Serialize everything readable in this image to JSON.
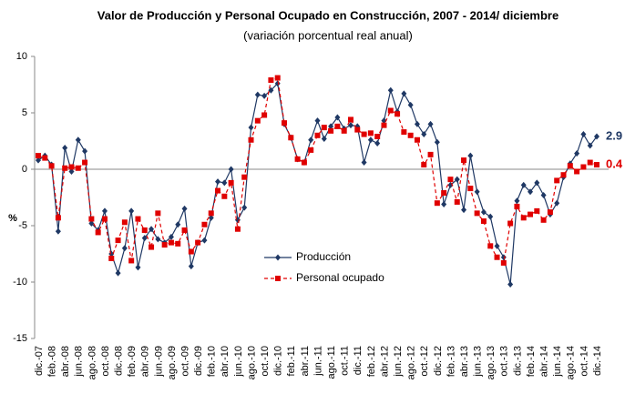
{
  "chart_data": {
    "type": "line",
    "title": "Valor de Producción y Personal Ocupado en Construcción, 2007 - 2014/ diciembre",
    "subtitle": "(variación porcentual real anual)",
    "y_label": "%",
    "categories": [
      "dic.-07",
      null,
      "feb.-08",
      null,
      "abr.-08",
      null,
      "jun.-08",
      null,
      "ago.-08",
      null,
      "oct.-08",
      null,
      "dic.-08",
      null,
      "feb.-09",
      null,
      "abr.-09",
      null,
      "jun.-09",
      null,
      "ago.-09",
      null,
      "oct.-09",
      null,
      "dic.-09",
      null,
      "feb.-10",
      null,
      "abr.-10",
      null,
      "jun.-10",
      null,
      "ago.-10",
      null,
      "oct.-10",
      null,
      "dic.-10",
      null,
      "feb.-11",
      null,
      "abr.-11",
      null,
      "jun.-11",
      null,
      "ago.-11",
      null,
      "oct.-11",
      null,
      "dic.-11",
      null,
      "feb.-12",
      null,
      "abr.-12",
      null,
      "jun.-12",
      null,
      "ago.-12",
      null,
      "oct.-12",
      null,
      "dic.-12",
      null,
      "feb.-13",
      null,
      "abr.-13",
      null,
      "jun.-13",
      null,
      "ago.-13",
      null,
      "oct.-13",
      null,
      "dic.-13",
      null,
      "feb.-14",
      null,
      "abr.-14",
      null,
      "jun.-14",
      null,
      "ago.-14",
      null,
      "oct.-14",
      null,
      "dic.-14"
    ],
    "series": [
      {
        "name": "Producción",
        "color": "#1f3864",
        "marker": "diamond",
        "dashed": false,
        "values": [
          0.8,
          1.2,
          0.4,
          -5.5,
          1.9,
          -0.2,
          2.6,
          1.6,
          -4.8,
          -5.4,
          -3.7,
          -7.5,
          -9.2,
          -7.0,
          -3.7,
          -8.7,
          -6.1,
          -5.3,
          -6.2,
          -6.5,
          -6.0,
          -4.9,
          -3.5,
          -8.6,
          -6.5,
          -6.3,
          -4.3,
          -1.1,
          -1.2,
          0.0,
          -4.5,
          -3.4,
          3.7,
          6.6,
          6.5,
          7.0,
          7.6,
          4.0,
          2.8,
          0.9,
          0.6,
          2.6,
          4.3,
          2.7,
          3.8,
          4.6,
          3.6,
          3.9,
          3.8,
          0.6,
          2.6,
          2.3,
          4.3,
          7.0,
          5.1,
          6.7,
          5.7,
          4.0,
          3.1,
          4.0,
          2.4,
          -3.1,
          -1.4,
          -0.9,
          -3.6,
          1.2,
          -2.0,
          -3.8,
          -4.2,
          -6.8,
          -7.8,
          -10.2,
          -2.8,
          -1.4,
          -2.0,
          -1.2,
          -2.3,
          -4.0,
          -3.0,
          -0.7,
          0.5,
          1.4,
          3.1,
          2.1,
          2.9
        ]
      },
      {
        "name": "Personal ocupado",
        "color": "#e00000",
        "marker": "square",
        "dashed": true,
        "values": [
          1.2,
          1.0,
          0.3,
          -4.3,
          0.1,
          0.2,
          0.1,
          0.6,
          -4.4,
          -5.6,
          -4.4,
          -7.9,
          -6.3,
          -4.7,
          -8.1,
          -4.4,
          -5.4,
          -6.9,
          -3.9,
          -6.7,
          -6.5,
          -6.6,
          -5.4,
          -7.3,
          -6.5,
          -4.9,
          -3.9,
          -1.9,
          -2.4,
          -1.2,
          -5.3,
          -0.7,
          2.6,
          4.3,
          4.8,
          7.9,
          8.1,
          4.1,
          2.8,
          0.9,
          0.6,
          1.7,
          3.0,
          3.7,
          3.4,
          3.8,
          3.4,
          4.4,
          3.5,
          3.1,
          3.2,
          2.9,
          3.9,
          5.2,
          4.9,
          3.3,
          3.0,
          2.6,
          0.4,
          1.3,
          -3.0,
          -2.1,
          -0.9,
          -2.9,
          0.8,
          -1.7,
          -3.9,
          -4.6,
          -6.8,
          -7.8,
          -8.3,
          -4.8,
          -3.3,
          -4.3,
          -4.0,
          -3.7,
          -4.5,
          -3.8,
          -1.0,
          -0.5,
          0.3,
          -0.2,
          0.2,
          0.6,
          0.4
        ]
      }
    ],
    "ylim": [
      -15,
      10
    ],
    "yticks": [
      -15,
      -10,
      -5,
      0,
      5,
      10
    ],
    "grid": false,
    "end_labels": true
  }
}
